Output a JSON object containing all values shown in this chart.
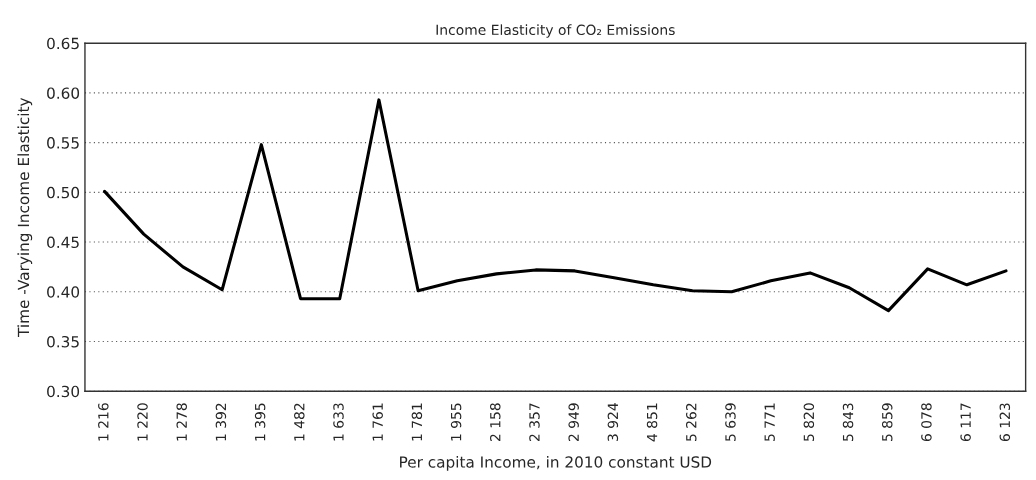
{
  "chart_data": {
    "type": "line",
    "title": "Income Elasticity of CO₂ Emissions",
    "xlabel": "Per capita Income, in 2010 constant USD",
    "ylabel": "Time -Varying Income Elasticity",
    "categories": [
      "1 216",
      "1 220",
      "1 278",
      "1 392",
      "1 395",
      "1 482",
      "1 633",
      "1 761",
      "1 781",
      "1 955",
      "2 158",
      "2 357",
      "2 949",
      "3 924",
      "4 851",
      "5 262",
      "5 639",
      "5 771",
      "5 820",
      "5 843",
      "5 859",
      "6 078",
      "6 117",
      "6 123"
    ],
    "series": [
      {
        "color": "#000000",
        "values": [
          0.501,
          0.458,
          0.425,
          0.402,
          0.548,
          0.393,
          0.393,
          0.593,
          0.401,
          0.411,
          0.418,
          0.422,
          0.421,
          0.414,
          0.407,
          0.401,
          0.4,
          0.411,
          0.419,
          0.404,
          0.381,
          0.423,
          0.407,
          0.421
        ]
      }
    ],
    "ylim": [
      0.3,
      0.65
    ],
    "yticks": [
      {
        "value": 0.3,
        "label": "0.30"
      },
      {
        "value": 0.35,
        "label": "0.35"
      },
      {
        "value": 0.4,
        "label": "0.40"
      },
      {
        "value": 0.45,
        "label": "0.45"
      },
      {
        "value": 0.5,
        "label": "0.50"
      },
      {
        "value": 0.55,
        "label": "0.55"
      },
      {
        "value": 0.6,
        "label": "0.60"
      },
      {
        "value": 0.65,
        "label": "0.65"
      }
    ],
    "grid": "y",
    "marker": "none",
    "line_style": "solid"
  }
}
